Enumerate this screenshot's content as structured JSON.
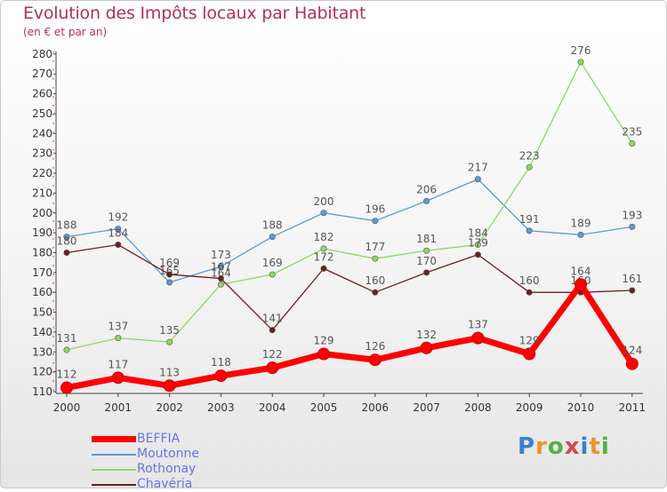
{
  "chart_data": {
    "type": "line",
    "title": "Evolution des Impôts locaux par Habitant",
    "subtitle": "(en € et par an)",
    "x": [
      "2000",
      "2001",
      "2002",
      "2003",
      "2004",
      "2005",
      "2006",
      "2007",
      "2008",
      "2009",
      "2010",
      "2011"
    ],
    "ylim": [
      110,
      280
    ],
    "yticks": [
      110,
      120,
      130,
      140,
      150,
      160,
      170,
      180,
      190,
      200,
      210,
      220,
      230,
      240,
      250,
      260,
      270,
      280
    ],
    "grid": false,
    "legend_position": "bottom-left",
    "series": [
      {
        "name": "Moutonne",
        "color": "#5b9bd5",
        "values": [
          188,
          192,
          165,
          173,
          188,
          200,
          196,
          206,
          217,
          191,
          189,
          193
        ]
      },
      {
        "name": "Rothonay",
        "color": "#8ed860",
        "values": [
          131,
          137,
          135,
          164,
          169,
          182,
          177,
          181,
          184,
          223,
          276,
          235
        ]
      },
      {
        "name": "Chavéria",
        "color": "#6b1f1f",
        "values": [
          180,
          184,
          169,
          167,
          141,
          172,
          160,
          170,
          179,
          160,
          160,
          161
        ]
      },
      {
        "name": "BEFFIA",
        "color": "#ff0000",
        "values": [
          112,
          117,
          113,
          118,
          122,
          129,
          126,
          132,
          137,
          129,
          164,
          124
        ]
      }
    ]
  },
  "legend": {
    "items": [
      {
        "label": "BEFFIA",
        "color": "#ff0000"
      },
      {
        "label": "Moutonne",
        "color": "#5b9bd5"
      },
      {
        "label": "Rothonay",
        "color": "#8ed860"
      },
      {
        "label": "Chavéria",
        "color": "#6b1f1f"
      }
    ]
  },
  "logo": {
    "text": "Proxiti"
  }
}
